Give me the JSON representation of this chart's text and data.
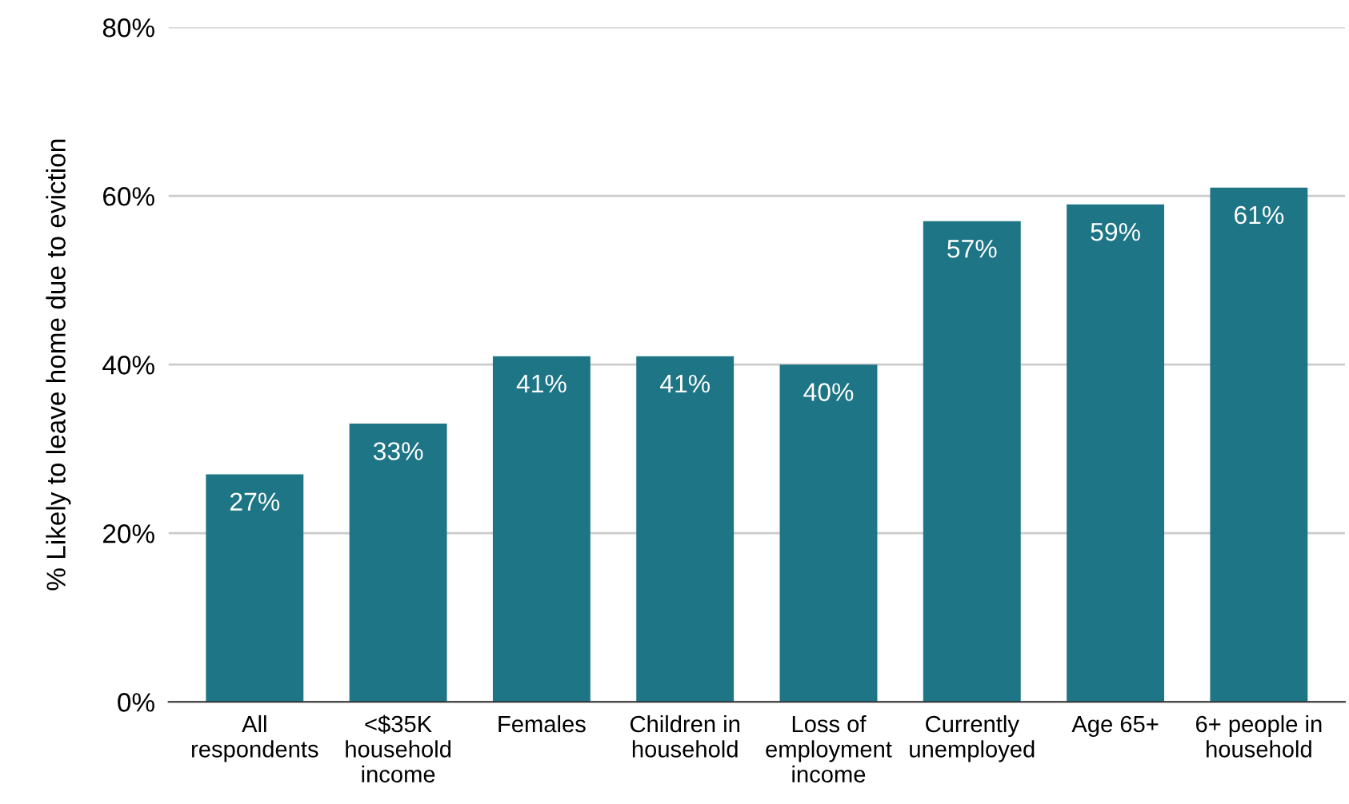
{
  "chart_data": {
    "type": "bar",
    "ylabel": "% Likely to leave home due to eviction",
    "categories": [
      "All\nrespondents",
      "<$35K\nhousehold\nincome",
      "Females",
      "Children in\nhousehold",
      "Loss of\nemployment\nincome",
      "Currently\nunemployed",
      "Age 65+",
      "6+ people in\nhousehold"
    ],
    "values": [
      27,
      33,
      41,
      41,
      40,
      57,
      59,
      61
    ],
    "value_labels": [
      "27%",
      "33%",
      "41%",
      "41%",
      "40%",
      "57%",
      "59%",
      "61%"
    ],
    "color": "#1e7585",
    "ylim": [
      0,
      80
    ],
    "yticks": [
      {
        "value": 0,
        "label": "0%"
      },
      {
        "value": 20,
        "label": "20%"
      },
      {
        "value": 40,
        "label": "40%"
      },
      {
        "value": 60,
        "label": "60%"
      },
      {
        "value": 80,
        "label": "80%"
      }
    ],
    "grid": "y",
    "legend": false
  }
}
